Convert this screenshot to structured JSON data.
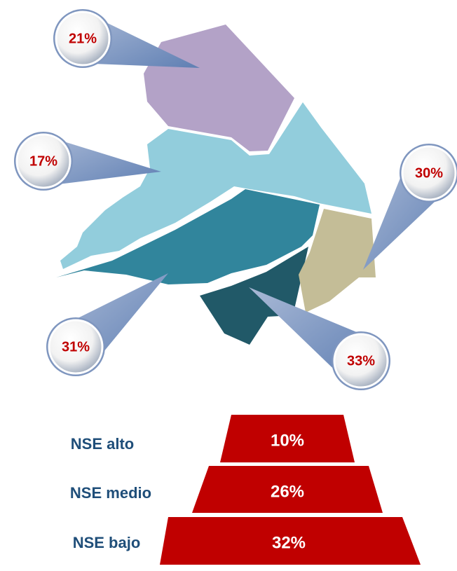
{
  "map": {
    "callouts": [
      {
        "label": "21%"
      },
      {
        "label": "17%"
      },
      {
        "label": "30%"
      },
      {
        "label": "31%"
      },
      {
        "label": "33%"
      }
    ]
  },
  "pyramid": {
    "levels": [
      {
        "name": "NSE alto",
        "value": "10%"
      },
      {
        "name": "NSE medio",
        "value": "26%"
      },
      {
        "name": "NSE bajo",
        "value": "32%"
      }
    ]
  }
}
